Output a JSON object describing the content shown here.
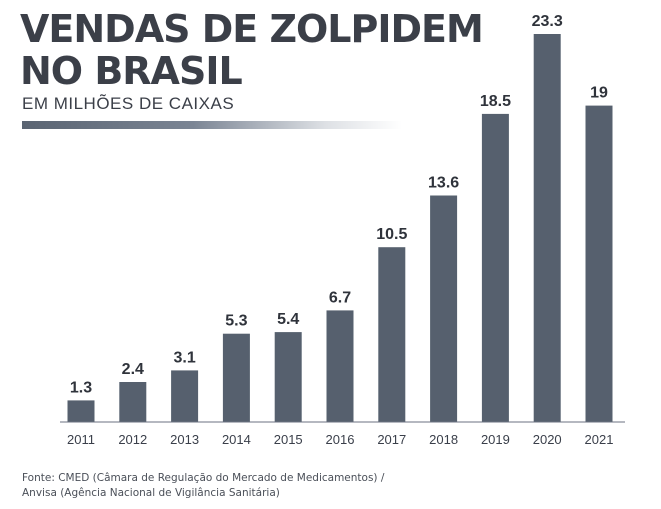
{
  "chart_data": {
    "type": "bar",
    "title_line1": "VENDAS DE ZOLPIDEM",
    "title_line2": "NO BRASIL",
    "subtitle": "EM MILHÕES DE CAIXAS",
    "categories": [
      "2011",
      "2012",
      "2013",
      "2014",
      "2015",
      "2016",
      "2017",
      "2018",
      "2019",
      "2020",
      "2021"
    ],
    "values": [
      1.3,
      2.4,
      3.1,
      5.3,
      5.4,
      6.7,
      10.5,
      13.6,
      18.5,
      23.3,
      19
    ],
    "value_labels": [
      "1.3",
      "2.4",
      "3.1",
      "5.3",
      "5.4",
      "6.7",
      "10.5",
      "13.6",
      "18.5",
      "23.3",
      "19"
    ],
    "xlabel": "",
    "ylabel": "",
    "ylim": [
      0,
      23.3
    ],
    "grid": false,
    "bar_color": "#56606e",
    "source_line1": "Fonte: CMED (Câmara de Regulação do Mercado de Medicamentos) /",
    "source_line2": "Anvisa (Agência Nacional de Vigilância Sanitária)"
  }
}
